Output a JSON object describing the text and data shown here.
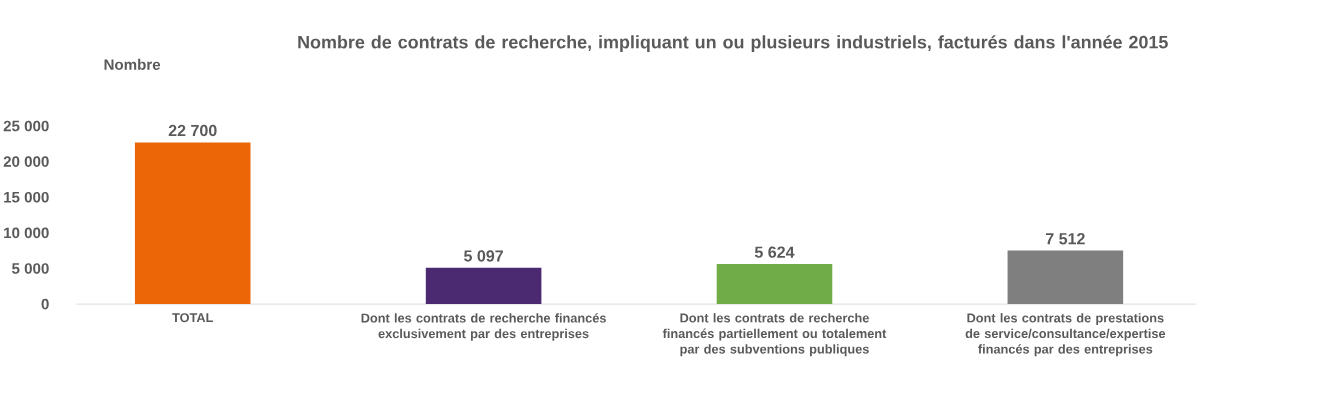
{
  "chart_data": {
    "type": "bar",
    "title": "Nombre de contrats de recherche, impliquant un ou plusieurs industriels, facturés dans l'année 2015",
    "ylabel": "Nombre",
    "categories": [
      "TOTAL",
      "Dont les contrats de recherche financés exclusivement par des entreprises",
      "Dont les contrats de recherche financés partiellement ou totalement par des subventions publiques",
      "Dont les contrats de prestations de service/consultance/expertise financés par des entreprises"
    ],
    "values": [
      22700,
      5097,
      5624,
      7512
    ],
    "colors": [
      "#ec6608",
      "#4b2a72",
      "#70ad47",
      "#7f7f7f"
    ],
    "value_labels": [
      "22 700",
      "5 097",
      "5 624",
      "7 512"
    ],
    "ylim": [
      0,
      25000
    ],
    "yticks": [
      {
        "value": 0,
        "label": "0"
      },
      {
        "value": 5000,
        "label": "5 000"
      },
      {
        "value": 10000,
        "label": "10 000"
      },
      {
        "value": 15000,
        "label": "15 000"
      },
      {
        "value": 20000,
        "label": "20 000"
      },
      {
        "value": 25000,
        "label": "25 000"
      }
    ]
  }
}
